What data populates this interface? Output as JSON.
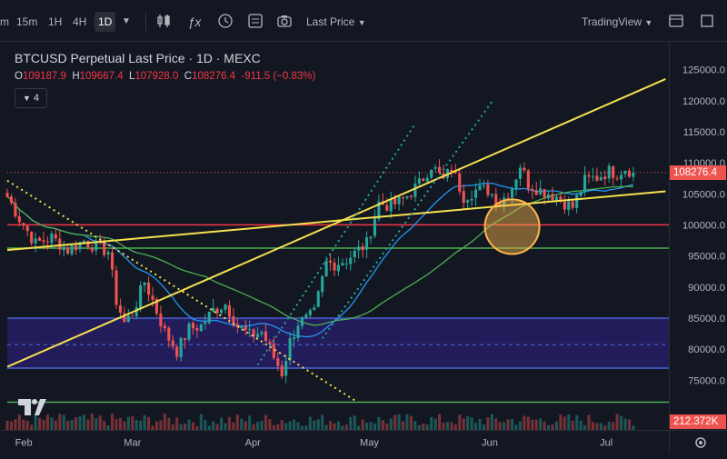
{
  "toolbar": {
    "timeframes": [
      "m",
      "15m",
      "1H",
      "4H",
      "1D"
    ],
    "active_timeframe": "1D",
    "price_type": "Last Price",
    "chart_style": "TradingView"
  },
  "legend": {
    "title": "BTCUSD Perpetual Last Price · 1D · MEXC",
    "open_label": "O",
    "open": "109187.9",
    "high_label": "H",
    "high": "109667.4",
    "low_label": "L",
    "low": "107928.0",
    "close_label": "C",
    "close": "108276.4",
    "change": "-911.5 (−0.83%)",
    "indicators_count": "4"
  },
  "colors": {
    "background": "#131722",
    "up": "#26a69a",
    "down": "#ef5350",
    "trendline": "#f5e050",
    "level_red": "#f23645",
    "ma_blue": "#2196f3",
    "ma_green": "#4caf50",
    "zone": "#2a1f6e"
  },
  "chart_data": {
    "type": "candlestick",
    "symbol": "BTCUSD",
    "y_ticks": [
      125000,
      120000,
      115000,
      110000,
      105000,
      100000,
      95000,
      90000,
      85000,
      80000,
      75000
    ],
    "y_tick_labels": [
      "125000.0",
      "120000.0",
      "115000.0",
      "110000.0",
      "105000.0",
      "100000.0",
      "95000.0",
      "90000.0",
      "85000.0",
      "80000.0",
      "75000.0"
    ],
    "ylim": [
      67500,
      129000
    ],
    "x_labels": [
      {
        "label": "Feb",
        "day": 0
      },
      {
        "label": "Mar",
        "day": 28
      },
      {
        "label": "Apr",
        "day": 59
      },
      {
        "label": "May",
        "day": 89
      },
      {
        "label": "Jun",
        "day": 120
      },
      {
        "label": "Jul",
        "day": 150
      }
    ],
    "first_day": -1,
    "days_visible": 162,
    "last_price": "108276.4",
    "last_price_value": 108276.4,
    "volume_label": "212.372K",
    "anchors": [
      [
        -1,
        104500
      ],
      [
        2,
        101000
      ],
      [
        6,
        97000
      ],
      [
        10,
        98000
      ],
      [
        14,
        96000
      ],
      [
        18,
        97500
      ],
      [
        21,
        96500
      ],
      [
        24,
        95800
      ],
      [
        26,
        88000
      ],
      [
        28,
        84500
      ],
      [
        30,
        86000
      ],
      [
        33,
        91000
      ],
      [
        35,
        88000
      ],
      [
        38,
        83000
      ],
      [
        41,
        80000
      ],
      [
        44,
        83500
      ],
      [
        47,
        84000
      ],
      [
        50,
        86500
      ],
      [
        53,
        87500
      ],
      [
        56,
        84000
      ],
      [
        59,
        82500
      ],
      [
        62,
        83000
      ],
      [
        65,
        79000
      ],
      [
        67,
        76500
      ],
      [
        69,
        81500
      ],
      [
        71,
        84500
      ],
      [
        73,
        85000
      ],
      [
        75,
        86000
      ],
      [
        78,
        94000
      ],
      [
        80,
        93800
      ],
      [
        83,
        94500
      ],
      [
        86,
        96000
      ],
      [
        88,
        97000
      ],
      [
        91,
        103500
      ],
      [
        94,
        103000
      ],
      [
        97,
        104000
      ],
      [
        101,
        106500
      ],
      [
        104,
        109500
      ],
      [
        107,
        107000
      ],
      [
        109,
        109000
      ],
      [
        112,
        104500
      ],
      [
        115,
        105500
      ],
      [
        118,
        105500
      ],
      [
        121,
        103500
      ],
      [
        124,
        106000
      ],
      [
        126,
        109500
      ],
      [
        128,
        106500
      ],
      [
        131,
        105500
      ],
      [
        135,
        104500
      ],
      [
        137,
        103500
      ],
      [
        139,
        102800
      ],
      [
        142,
        107000
      ],
      [
        145,
        107500
      ],
      [
        148,
        108500
      ],
      [
        150,
        108200
      ],
      [
        152,
        109000
      ],
      [
        154,
        108300
      ]
    ],
    "levels": [
      {
        "value": 100000,
        "color": "#f23645"
      },
      {
        "value": 108276.4,
        "color": "#ef5350",
        "style": "dotted"
      },
      {
        "value": 96300,
        "color": "#4caf50"
      },
      {
        "value": 81000,
        "color": "#3f51b5",
        "style": "dashed"
      },
      {
        "value": 71900,
        "color": "#4caf50"
      }
    ],
    "zone": {
      "from": 77300,
      "to": 85200
    },
    "trendlines": [
      {
        "from": [
          -1,
          77500
        ],
        "to": [
          162,
          123100
        ],
        "color": "#f5e050"
      },
      {
        "from": [
          -1,
          96000
        ],
        "to": [
          162,
          105300
        ],
        "color": "#f5e050"
      },
      {
        "from": [
          -1,
          107000
        ],
        "to": [
          85,
          72200
        ],
        "color": "#f5e050",
        "style": "dotted"
      },
      {
        "from": [
          61,
          77800
        ],
        "to": [
          100,
          116000
        ],
        "color": "#26a69a",
        "style": "dotted"
      },
      {
        "from": [
          77,
          82000
        ],
        "to": [
          119,
          119500
        ],
        "color": "#26a69a",
        "style": "dotted"
      }
    ],
    "circle": {
      "day": 124,
      "value": 99700
    }
  }
}
